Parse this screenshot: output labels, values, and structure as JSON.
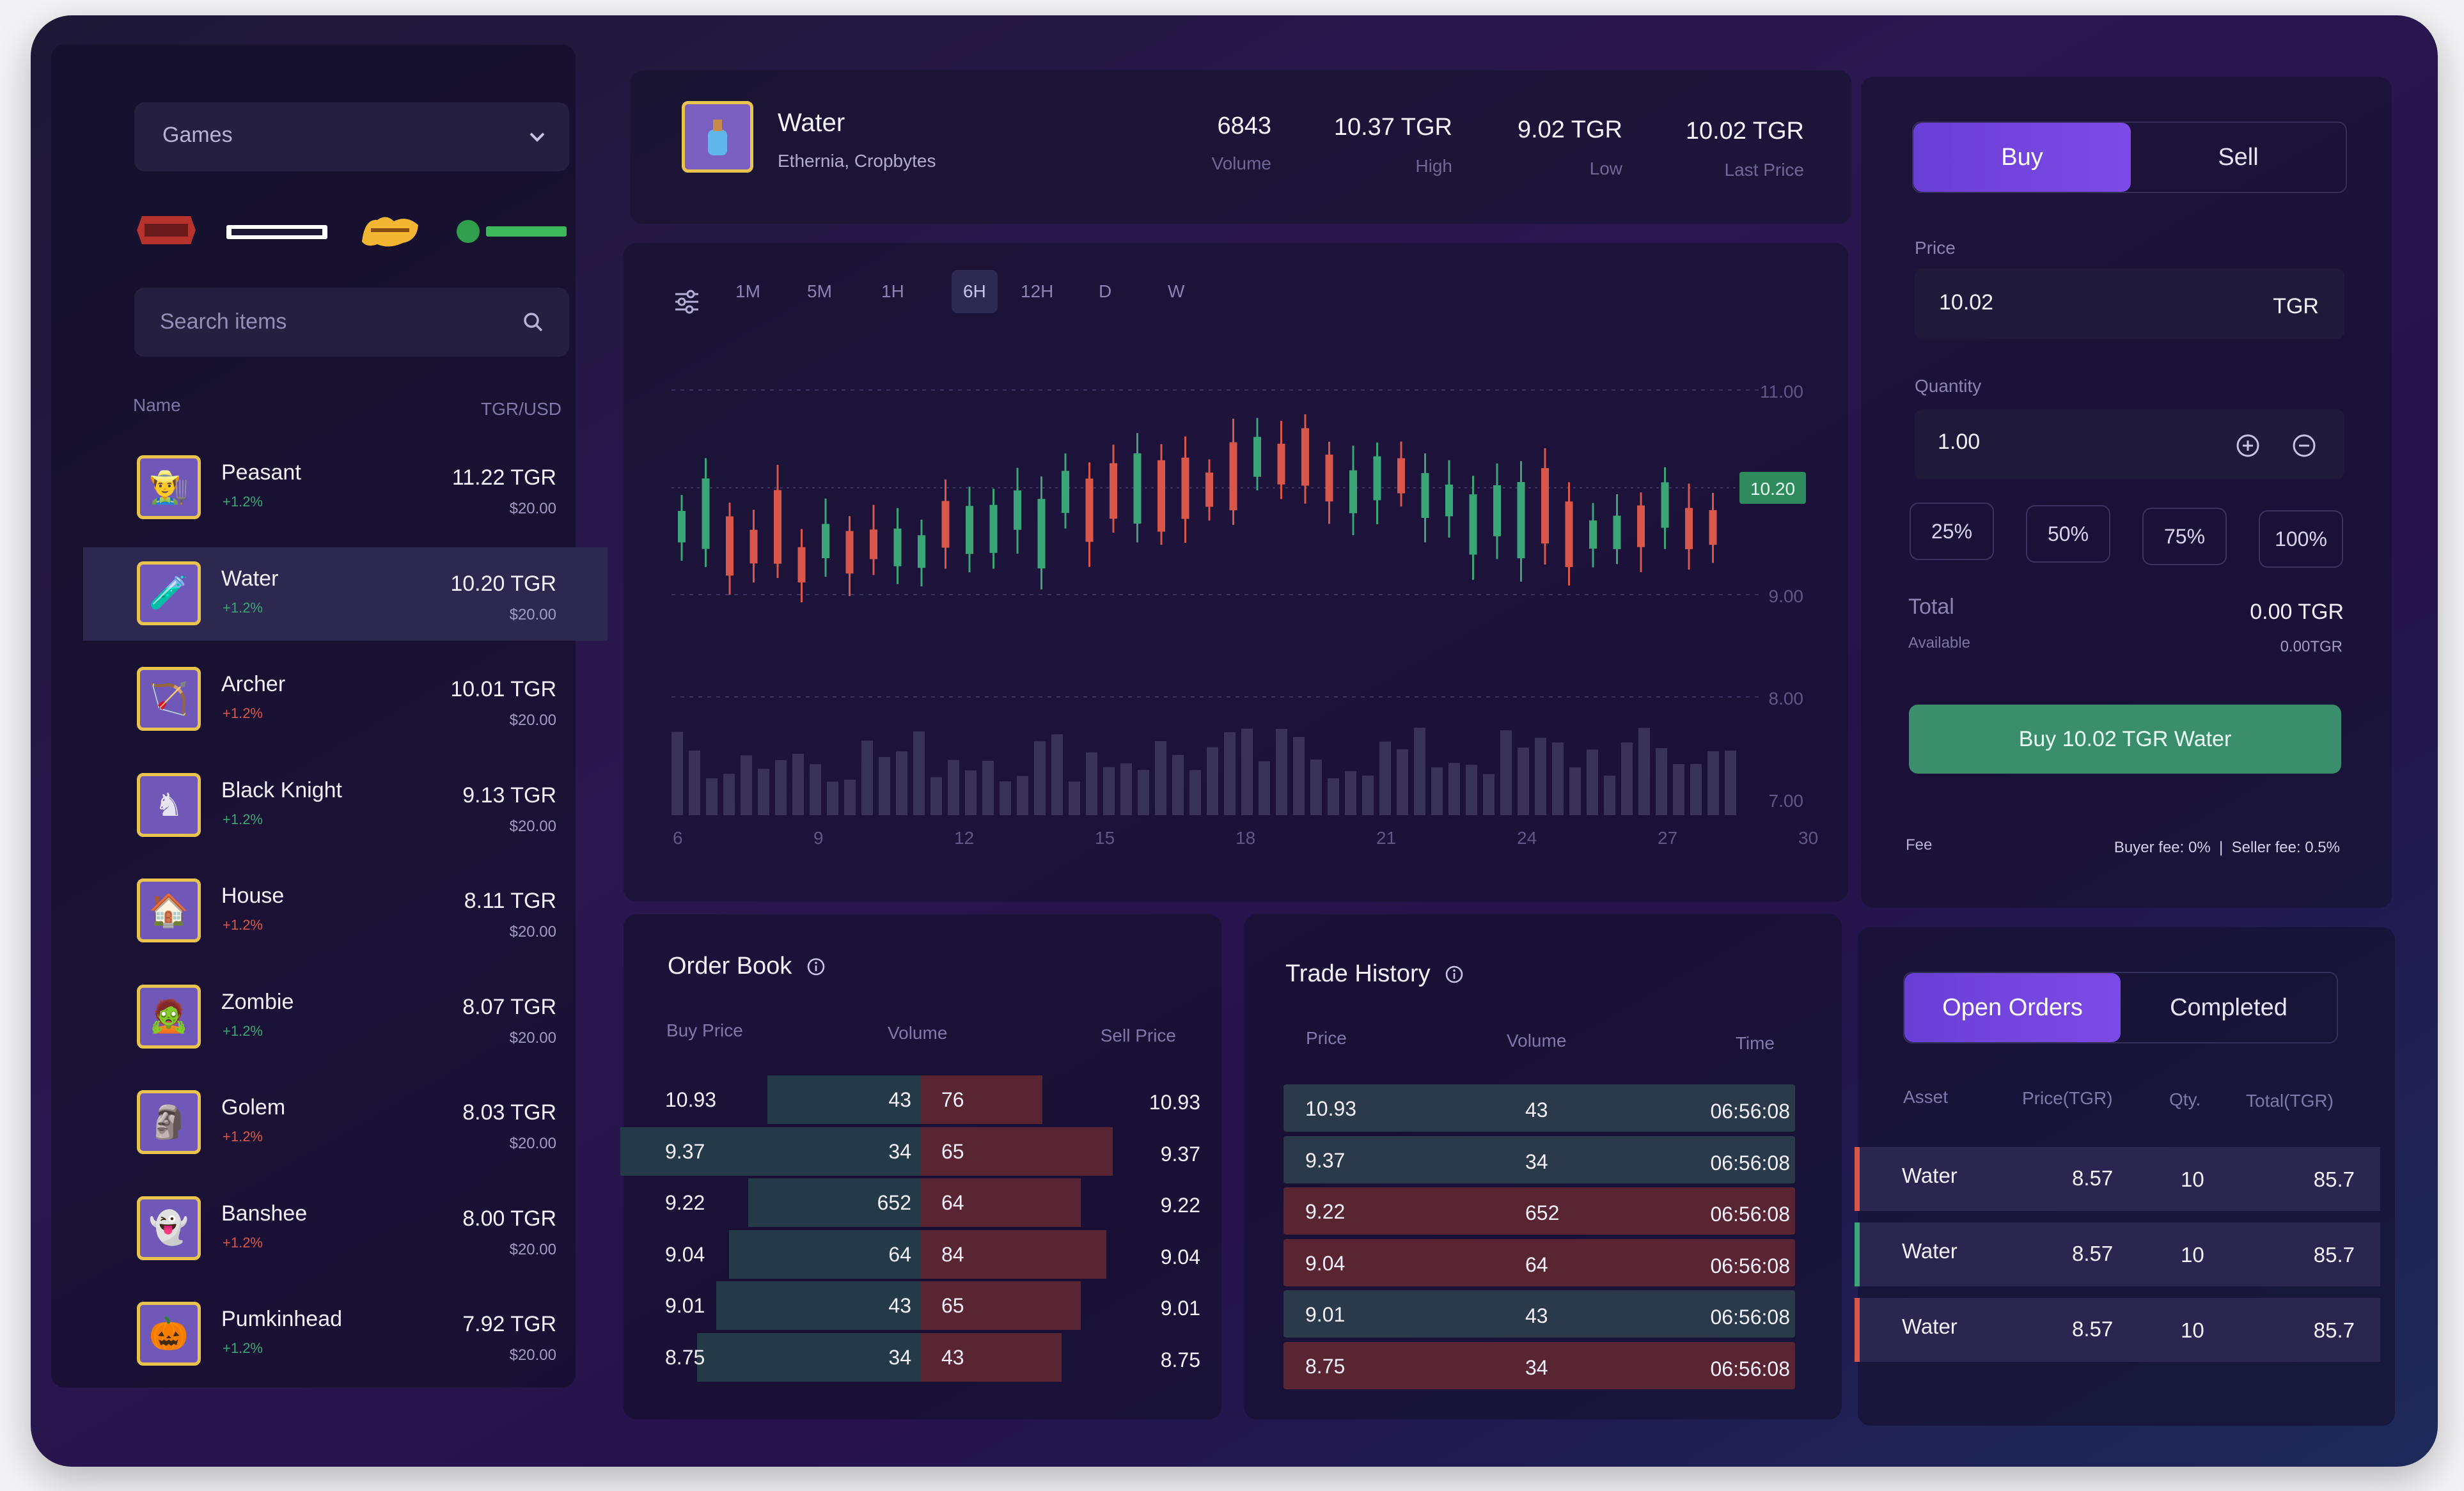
{
  "sidebar": {
    "games_label": "Games",
    "search_placeholder": "Search items",
    "col_name": "Name",
    "col_price": "TGR/USD",
    "items": [
      {
        "name": "Peasant",
        "change": "+1.2%",
        "change_color": "#3aa577",
        "price": "11.22 TGR",
        "usd": "$20.00"
      },
      {
        "name": "Water",
        "change": "+1.2%",
        "change_color": "#3aa577",
        "price": "10.20 TGR",
        "usd": "$20.00"
      },
      {
        "name": "Archer",
        "change": "+1.2%",
        "change_color": "#d9564a",
        "price": "10.01 TGR",
        "usd": "$20.00"
      },
      {
        "name": "Black Knight",
        "change": "+1.2%",
        "change_color": "#3aa577",
        "price": "9.13 TGR",
        "usd": "$20.00"
      },
      {
        "name": "House",
        "change": "+1.2%",
        "change_color": "#d9564a",
        "price": "8.11 TGR",
        "usd": "$20.00"
      },
      {
        "name": "Zombie",
        "change": "+1.2%",
        "change_color": "#3aa577",
        "price": "8.07 TGR",
        "usd": "$20.00"
      },
      {
        "name": "Golem",
        "change": "+1.2%",
        "change_color": "#d9564a",
        "price": "8.03 TGR",
        "usd": "$20.00"
      },
      {
        "name": "Banshee",
        "change": "+1.2%",
        "change_color": "#d9564a",
        "price": "8.00 TGR",
        "usd": "$20.00"
      },
      {
        "name": "Pumkinhead",
        "change": "+1.2%",
        "change_color": "#3aa577",
        "price": "7.92 TGR",
        "usd": "$20.00"
      }
    ]
  },
  "header": {
    "item_name": "Water",
    "item_sub": "Ethernia, Cropbytes",
    "volume_val": "6843",
    "volume_lbl": "Volume",
    "high_val": "10.37 TGR",
    "high_lbl": "High",
    "low_val": "9.02 TGR",
    "low_lbl": "Low",
    "last_val": "10.02 TGR",
    "last_lbl": "Last Price"
  },
  "chart": {
    "timeframes": [
      "1M",
      "5M",
      "1H",
      "6H",
      "12H",
      "D",
      "W"
    ],
    "active_timeframe": "6H",
    "current_price_tag": "10.20"
  },
  "chart_data": {
    "type": "candlestick",
    "x_ticks": [
      "6",
      "9",
      "12",
      "15",
      "18",
      "21",
      "24",
      "27",
      "30"
    ],
    "y_ticks": [
      "11.00",
      "10.20",
      "9.00",
      "8.00",
      "7.00"
    ],
    "up_color": "#3aa577",
    "down_color": "#d9564a"
  },
  "trade": {
    "buy_tab": "Buy",
    "sell_tab": "Sell",
    "price_label": "Price",
    "price_value": "10.02",
    "price_unit": "TGR",
    "quantity_label": "Quantity",
    "quantity_value": "1.00",
    "pcts": [
      "25%",
      "50%",
      "75%",
      "100%"
    ],
    "total_label": "Total",
    "total_value": "0.00 TGR",
    "available_label": "Available",
    "available_value": "0.00TGR",
    "cta": "Buy 10.02 TGR Water",
    "fee_label": "Fee",
    "fee_info": "Buyer fee: 0%  |  Seller fee: 0.5%"
  },
  "order_book": {
    "title": "Order Book",
    "col_buy": "Buy Price",
    "col_volume": "Volume",
    "col_sell": "Sell Price",
    "rows": [
      {
        "buy": "10.93",
        "bvol": "43",
        "svol": "76",
        "sell": "10.93"
      },
      {
        "buy": "9.37",
        "bvol": "34",
        "svol": "65",
        "sell": "9.37"
      },
      {
        "buy": "9.22",
        "bvol": "652",
        "svol": "64",
        "sell": "9.22"
      },
      {
        "buy": "9.04",
        "bvol": "64",
        "svol": "84",
        "sell": "9.04"
      },
      {
        "buy": "9.01",
        "bvol": "43",
        "svol": "65",
        "sell": "9.01"
      },
      {
        "buy": "8.75",
        "bvol": "34",
        "svol": "43",
        "sell": "8.75"
      }
    ]
  },
  "trade_history": {
    "title": "Trade History",
    "col_price": "Price",
    "col_volume": "Volume",
    "col_time": "Time",
    "rows": [
      {
        "price": "10.93",
        "volume": "43",
        "time": "06:56:08",
        "side": "buy"
      },
      {
        "price": "9.37",
        "volume": "34",
        "time": "06:56:08",
        "side": "buy"
      },
      {
        "price": "9.22",
        "volume": "652",
        "time": "06:56:08",
        "side": "sell"
      },
      {
        "price": "9.04",
        "volume": "64",
        "time": "06:56:08",
        "side": "sell"
      },
      {
        "price": "9.01",
        "volume": "43",
        "time": "06:56:08",
        "side": "buy"
      },
      {
        "price": "8.75",
        "volume": "34",
        "time": "06:56:08",
        "side": "sell"
      }
    ]
  },
  "orders": {
    "open_tab": "Open Orders",
    "completed_tab": "Completed",
    "col_asset": "Asset",
    "col_price": "Price(TGR)",
    "col_qty": "Qty.",
    "col_total": "Total(TGR)",
    "rows": [
      {
        "asset": "Water",
        "price": "8.57",
        "qty": "10",
        "total": "85.7",
        "color": "#d9564a"
      },
      {
        "asset": "Water",
        "price": "8.57",
        "qty": "10",
        "total": "85.7",
        "color": "#3aa577"
      },
      {
        "asset": "Water",
        "price": "8.57",
        "qty": "10",
        "total": "85.7",
        "color": "#d9564a"
      }
    ]
  }
}
